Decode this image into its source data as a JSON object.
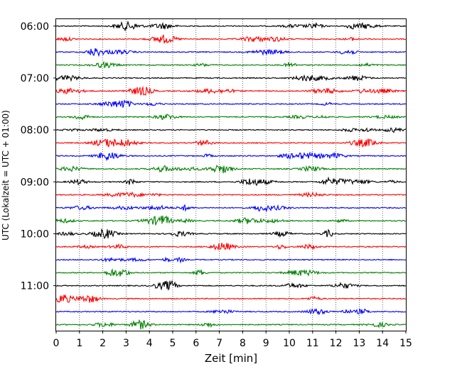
{
  "chart_data": {
    "type": "line",
    "subtype": "helicorder-seismogram",
    "title": "",
    "xlabel": "Zeit  [min]",
    "ylabel": "UTC (Lokalzeit = UTC + 01:00)",
    "xlim": [
      0,
      15
    ],
    "x_ticks": [
      "0",
      "1",
      "2",
      "3",
      "4",
      "5",
      "6",
      "7",
      "8",
      "9",
      "10",
      "11",
      "12",
      "13",
      "14",
      "15"
    ],
    "y_time_range": [
      "05:52",
      "11:52"
    ],
    "y_ticks": [
      "06:00",
      "07:00",
      "08:00",
      "09:00",
      "10:00",
      "11:00"
    ],
    "grid": {
      "x": "dotted vertical at each minute",
      "y": false
    },
    "trace_interval_minutes": 15,
    "trace_colors": [
      "#000000",
      "#ff0000",
      "#0000ff",
      "#008000"
    ],
    "traces": [
      {
        "start": "06:00",
        "color": "#000000"
      },
      {
        "start": "06:15",
        "color": "#ff0000"
      },
      {
        "start": "06:30",
        "color": "#0000ff"
      },
      {
        "start": "06:45",
        "color": "#008000"
      },
      {
        "start": "07:00",
        "color": "#000000"
      },
      {
        "start": "07:15",
        "color": "#ff0000"
      },
      {
        "start": "07:30",
        "color": "#0000ff"
      },
      {
        "start": "07:45",
        "color": "#008000"
      },
      {
        "start": "08:00",
        "color": "#000000"
      },
      {
        "start": "08:15",
        "color": "#ff0000"
      },
      {
        "start": "08:30",
        "color": "#0000ff"
      },
      {
        "start": "08:45",
        "color": "#008000"
      },
      {
        "start": "09:00",
        "color": "#000000"
      },
      {
        "start": "09:15",
        "color": "#ff0000"
      },
      {
        "start": "09:30",
        "color": "#0000ff"
      },
      {
        "start": "09:45",
        "color": "#008000"
      },
      {
        "start": "10:00",
        "color": "#000000"
      },
      {
        "start": "10:15",
        "color": "#ff0000"
      },
      {
        "start": "10:30",
        "color": "#0000ff"
      },
      {
        "start": "10:45",
        "color": "#008000"
      },
      {
        "start": "11:00",
        "color": "#000000"
      },
      {
        "start": "11:15",
        "color": "#ff0000"
      },
      {
        "start": "11:30",
        "color": "#0000ff"
      },
      {
        "start": "11:45",
        "color": "#008000"
      }
    ]
  }
}
